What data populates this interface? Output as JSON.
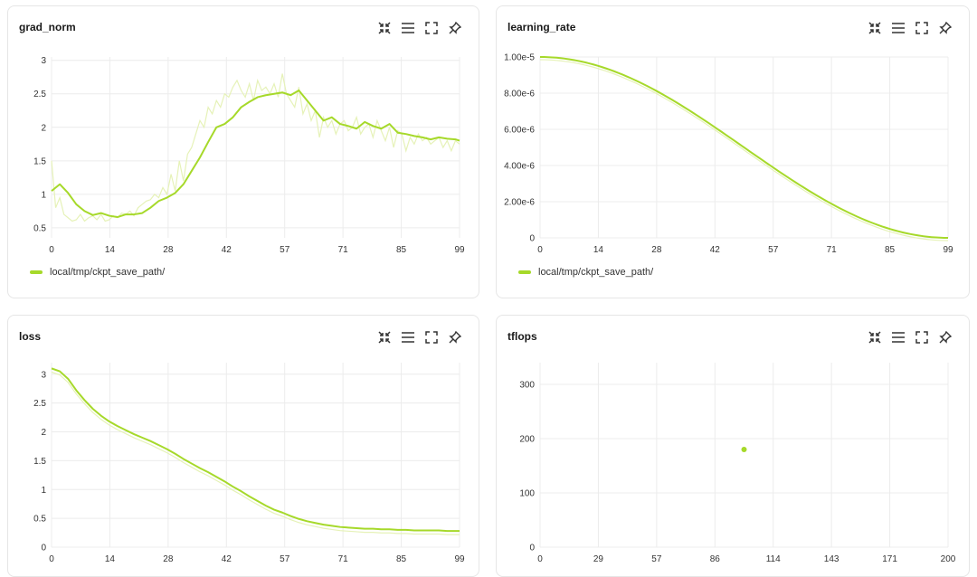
{
  "colors": {
    "series": "#a6d92a",
    "series_light": "#e6f2b8",
    "grid": "#ececec"
  },
  "icons": [
    "fit-to-chart-icon",
    "menu-icon",
    "fullscreen-icon",
    "pin-icon"
  ],
  "panels": [
    {
      "title": "grad_norm",
      "legend": "local/tmp/ckpt_save_path/"
    },
    {
      "title": "learning_rate",
      "legend": "local/tmp/ckpt_save_path/"
    },
    {
      "title": "loss",
      "legend": ""
    },
    {
      "title": "tflops",
      "legend": ""
    }
  ],
  "chart_data": [
    {
      "type": "line",
      "title": "grad_norm",
      "x_ticks": [
        "0",
        "14",
        "28",
        "42",
        "57",
        "71",
        "85",
        "99"
      ],
      "y_ticks": [
        "0.5",
        "1",
        "1.5",
        "2",
        "2.5",
        "3"
      ],
      "xlim": [
        0,
        99
      ],
      "ylim": [
        0.35,
        3.05
      ],
      "grid": true,
      "series": [
        {
          "name": "local/tmp/ckpt_save_path/",
          "x": [
            0,
            2,
            4,
            6,
            8,
            10,
            12,
            14,
            16,
            18,
            20,
            22,
            24,
            26,
            28,
            30,
            32,
            34,
            36,
            38,
            40,
            42,
            44,
            46,
            48,
            50,
            52,
            54,
            56,
            58,
            60,
            62,
            64,
            66,
            68,
            70,
            72,
            74,
            76,
            78,
            80,
            82,
            84,
            86,
            88,
            90,
            92,
            94,
            96,
            98,
            99
          ],
          "values": [
            1.05,
            1.15,
            1.02,
            0.85,
            0.75,
            0.69,
            0.72,
            0.68,
            0.66,
            0.7,
            0.7,
            0.72,
            0.8,
            0.9,
            0.95,
            1.02,
            1.15,
            1.35,
            1.55,
            1.78,
            2.0,
            2.05,
            2.15,
            2.3,
            2.38,
            2.45,
            2.48,
            2.5,
            2.52,
            2.48,
            2.55,
            2.4,
            2.25,
            2.1,
            2.15,
            2.05,
            2.02,
            1.98,
            2.08,
            2.02,
            1.98,
            2.05,
            1.92,
            1.9,
            1.87,
            1.85,
            1.82,
            1.85,
            1.83,
            1.82,
            1.8
          ]
        }
      ],
      "raw_series": {
        "x": [
          0,
          1,
          2,
          3,
          4,
          5,
          6,
          7,
          8,
          9,
          10,
          11,
          12,
          13,
          14,
          15,
          16,
          17,
          18,
          19,
          20,
          21,
          22,
          23,
          24,
          25,
          26,
          27,
          28,
          29,
          30,
          31,
          32,
          33,
          34,
          35,
          36,
          37,
          38,
          39,
          40,
          41,
          42,
          43,
          44,
          45,
          46,
          47,
          48,
          49,
          50,
          51,
          52,
          53,
          54,
          55,
          56,
          57,
          58,
          59,
          60,
          61,
          62,
          63,
          64,
          65,
          66,
          67,
          68,
          69,
          70,
          71,
          72,
          73,
          74,
          75,
          76,
          77,
          78,
          79,
          80,
          81,
          82,
          83,
          84,
          85,
          86,
          87,
          88,
          89,
          90,
          91,
          92,
          93,
          94,
          95,
          96,
          97,
          98,
          99
        ],
        "values": [
          1.5,
          0.8,
          0.95,
          0.7,
          0.65,
          0.6,
          0.62,
          0.7,
          0.6,
          0.65,
          0.68,
          0.62,
          0.7,
          0.6,
          0.62,
          0.68,
          0.65,
          0.72,
          0.7,
          0.75,
          0.68,
          0.8,
          0.85,
          0.9,
          0.92,
          1.0,
          0.95,
          1.1,
          1.0,
          1.3,
          1.05,
          1.5,
          1.2,
          1.6,
          1.7,
          1.9,
          2.1,
          2.0,
          2.3,
          2.2,
          2.4,
          2.3,
          2.5,
          2.45,
          2.6,
          2.7,
          2.55,
          2.45,
          2.65,
          2.4,
          2.7,
          2.55,
          2.6,
          2.5,
          2.65,
          2.45,
          2.8,
          2.5,
          2.4,
          2.3,
          2.6,
          2.2,
          2.35,
          2.1,
          2.25,
          1.85,
          2.15,
          2.0,
          2.1,
          1.9,
          2.05,
          2.1,
          1.95,
          2.0,
          2.15,
          1.9,
          2.0,
          2.05,
          1.85,
          2.1,
          1.95,
          1.8,
          2.0,
          1.7,
          1.95,
          1.9,
          1.65,
          1.85,
          1.75,
          1.9,
          1.8,
          1.85,
          1.75,
          1.8,
          1.85,
          1.7,
          1.8,
          1.65,
          1.8,
          1.75
        ]
      }
    },
    {
      "type": "line",
      "title": "learning_rate",
      "x_ticks": [
        "0",
        "14",
        "28",
        "42",
        "57",
        "71",
        "85",
        "99"
      ],
      "y_ticks": [
        "0",
        "2.00e-6",
        "4.00e-6",
        "6.00e-6",
        "8.00e-6",
        "1.00e-5"
      ],
      "xlim": [
        0,
        99
      ],
      "ylim": [
        0,
        1e-05
      ],
      "grid": true,
      "series": [
        {
          "name": "local/tmp/ckpt_save_path/",
          "formula": "cosine decay from 1.00e-5 to 0 over 0..99"
        }
      ]
    },
    {
      "type": "line",
      "title": "loss",
      "x_ticks": [
        "0",
        "14",
        "28",
        "42",
        "57",
        "71",
        "85",
        "99"
      ],
      "y_ticks": [
        "0",
        "0.5",
        "1",
        "1.5",
        "2",
        "2.5",
        "3"
      ],
      "xlim": [
        0,
        99
      ],
      "ylim": [
        0,
        3.2
      ],
      "grid": true,
      "series": [
        {
          "name": "local/tmp/ckpt_save_path/",
          "x": [
            0,
            2,
            4,
            6,
            8,
            10,
            12,
            14,
            16,
            18,
            20,
            22,
            24,
            26,
            28,
            30,
            32,
            34,
            36,
            38,
            40,
            42,
            44,
            46,
            48,
            50,
            52,
            54,
            56,
            58,
            60,
            62,
            64,
            66,
            68,
            70,
            72,
            74,
            76,
            78,
            80,
            82,
            84,
            86,
            88,
            90,
            92,
            94,
            96,
            98,
            99
          ],
          "values": [
            3.1,
            3.05,
            2.92,
            2.72,
            2.55,
            2.4,
            2.28,
            2.18,
            2.1,
            2.03,
            1.96,
            1.9,
            1.84,
            1.77,
            1.7,
            1.62,
            1.53,
            1.45,
            1.37,
            1.3,
            1.22,
            1.14,
            1.05,
            0.97,
            0.88,
            0.8,
            0.72,
            0.65,
            0.6,
            0.54,
            0.49,
            0.45,
            0.42,
            0.39,
            0.37,
            0.35,
            0.34,
            0.33,
            0.32,
            0.32,
            0.31,
            0.31,
            0.3,
            0.3,
            0.29,
            0.29,
            0.29,
            0.29,
            0.28,
            0.28,
            0.28
          ]
        }
      ]
    },
    {
      "type": "scatter",
      "title": "tflops",
      "x_ticks": [
        "0",
        "29",
        "57",
        "86",
        "114",
        "143",
        "171",
        "200"
      ],
      "y_ticks": [
        "0",
        "100",
        "200",
        "300"
      ],
      "xlim": [
        0,
        200
      ],
      "ylim": [
        0,
        340
      ],
      "grid": true,
      "series": [
        {
          "x": [
            100
          ],
          "values": [
            180
          ]
        }
      ]
    }
  ]
}
